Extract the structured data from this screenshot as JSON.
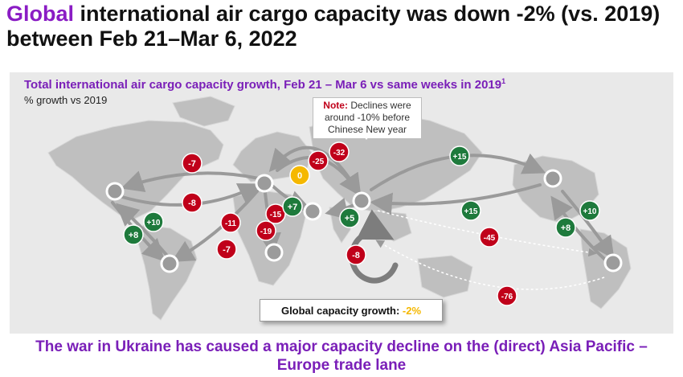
{
  "header": {
    "title_accent": "Global",
    "title_rest": " international air cargo capacity was down -2% (vs. 2019) between Feb 21–Mar 6, 2022"
  },
  "chart_data": {
    "type": "map",
    "title": "Total international air cargo capacity growth, Feb 21 – Mar 6 vs same weeks in 2019",
    "title_footnote": "1",
    "unit_label": "% growth vs 2019",
    "note": {
      "label": "Note:",
      "text": "Declines were around -10% before Chinese New year"
    },
    "global": {
      "label": "Global capacity growth: ",
      "value": "-2%"
    },
    "colors": {
      "decline": "#c0001a",
      "growth": "#1e7a3c",
      "neutral": "#f5b800",
      "panel": "#e9e9e9",
      "land": "#bfbfbf",
      "accent": "#8a1cc4"
    },
    "badges": [
      {
        "label": "-7",
        "value": -7
      },
      {
        "label": "-8",
        "value": -8
      },
      {
        "label": "+10",
        "value": 10
      },
      {
        "label": "+8",
        "value": 8
      },
      {
        "label": "-11",
        "value": -11
      },
      {
        "label": "-7",
        "value": -7
      },
      {
        "label": "-15",
        "value": -15
      },
      {
        "label": "-19",
        "value": -19
      },
      {
        "label": "+7",
        "value": 7
      },
      {
        "label": "0",
        "value": 0
      },
      {
        "label": "-25",
        "value": -25
      },
      {
        "label": "-32",
        "value": -32
      },
      {
        "label": "+5",
        "value": 5
      },
      {
        "label": "-8",
        "value": -8
      },
      {
        "label": "+15",
        "value": 15
      },
      {
        "label": "+15",
        "value": 15
      },
      {
        "label": "-45",
        "value": -45
      },
      {
        "label": "+10",
        "value": 10
      },
      {
        "label": "+8",
        "value": 8
      },
      {
        "label": "-76",
        "value": -76
      }
    ]
  },
  "footer": {
    "text": "The war in Ukraine has caused a major capacity decline on the (direct) Asia Pacific – Europe trade lane"
  }
}
